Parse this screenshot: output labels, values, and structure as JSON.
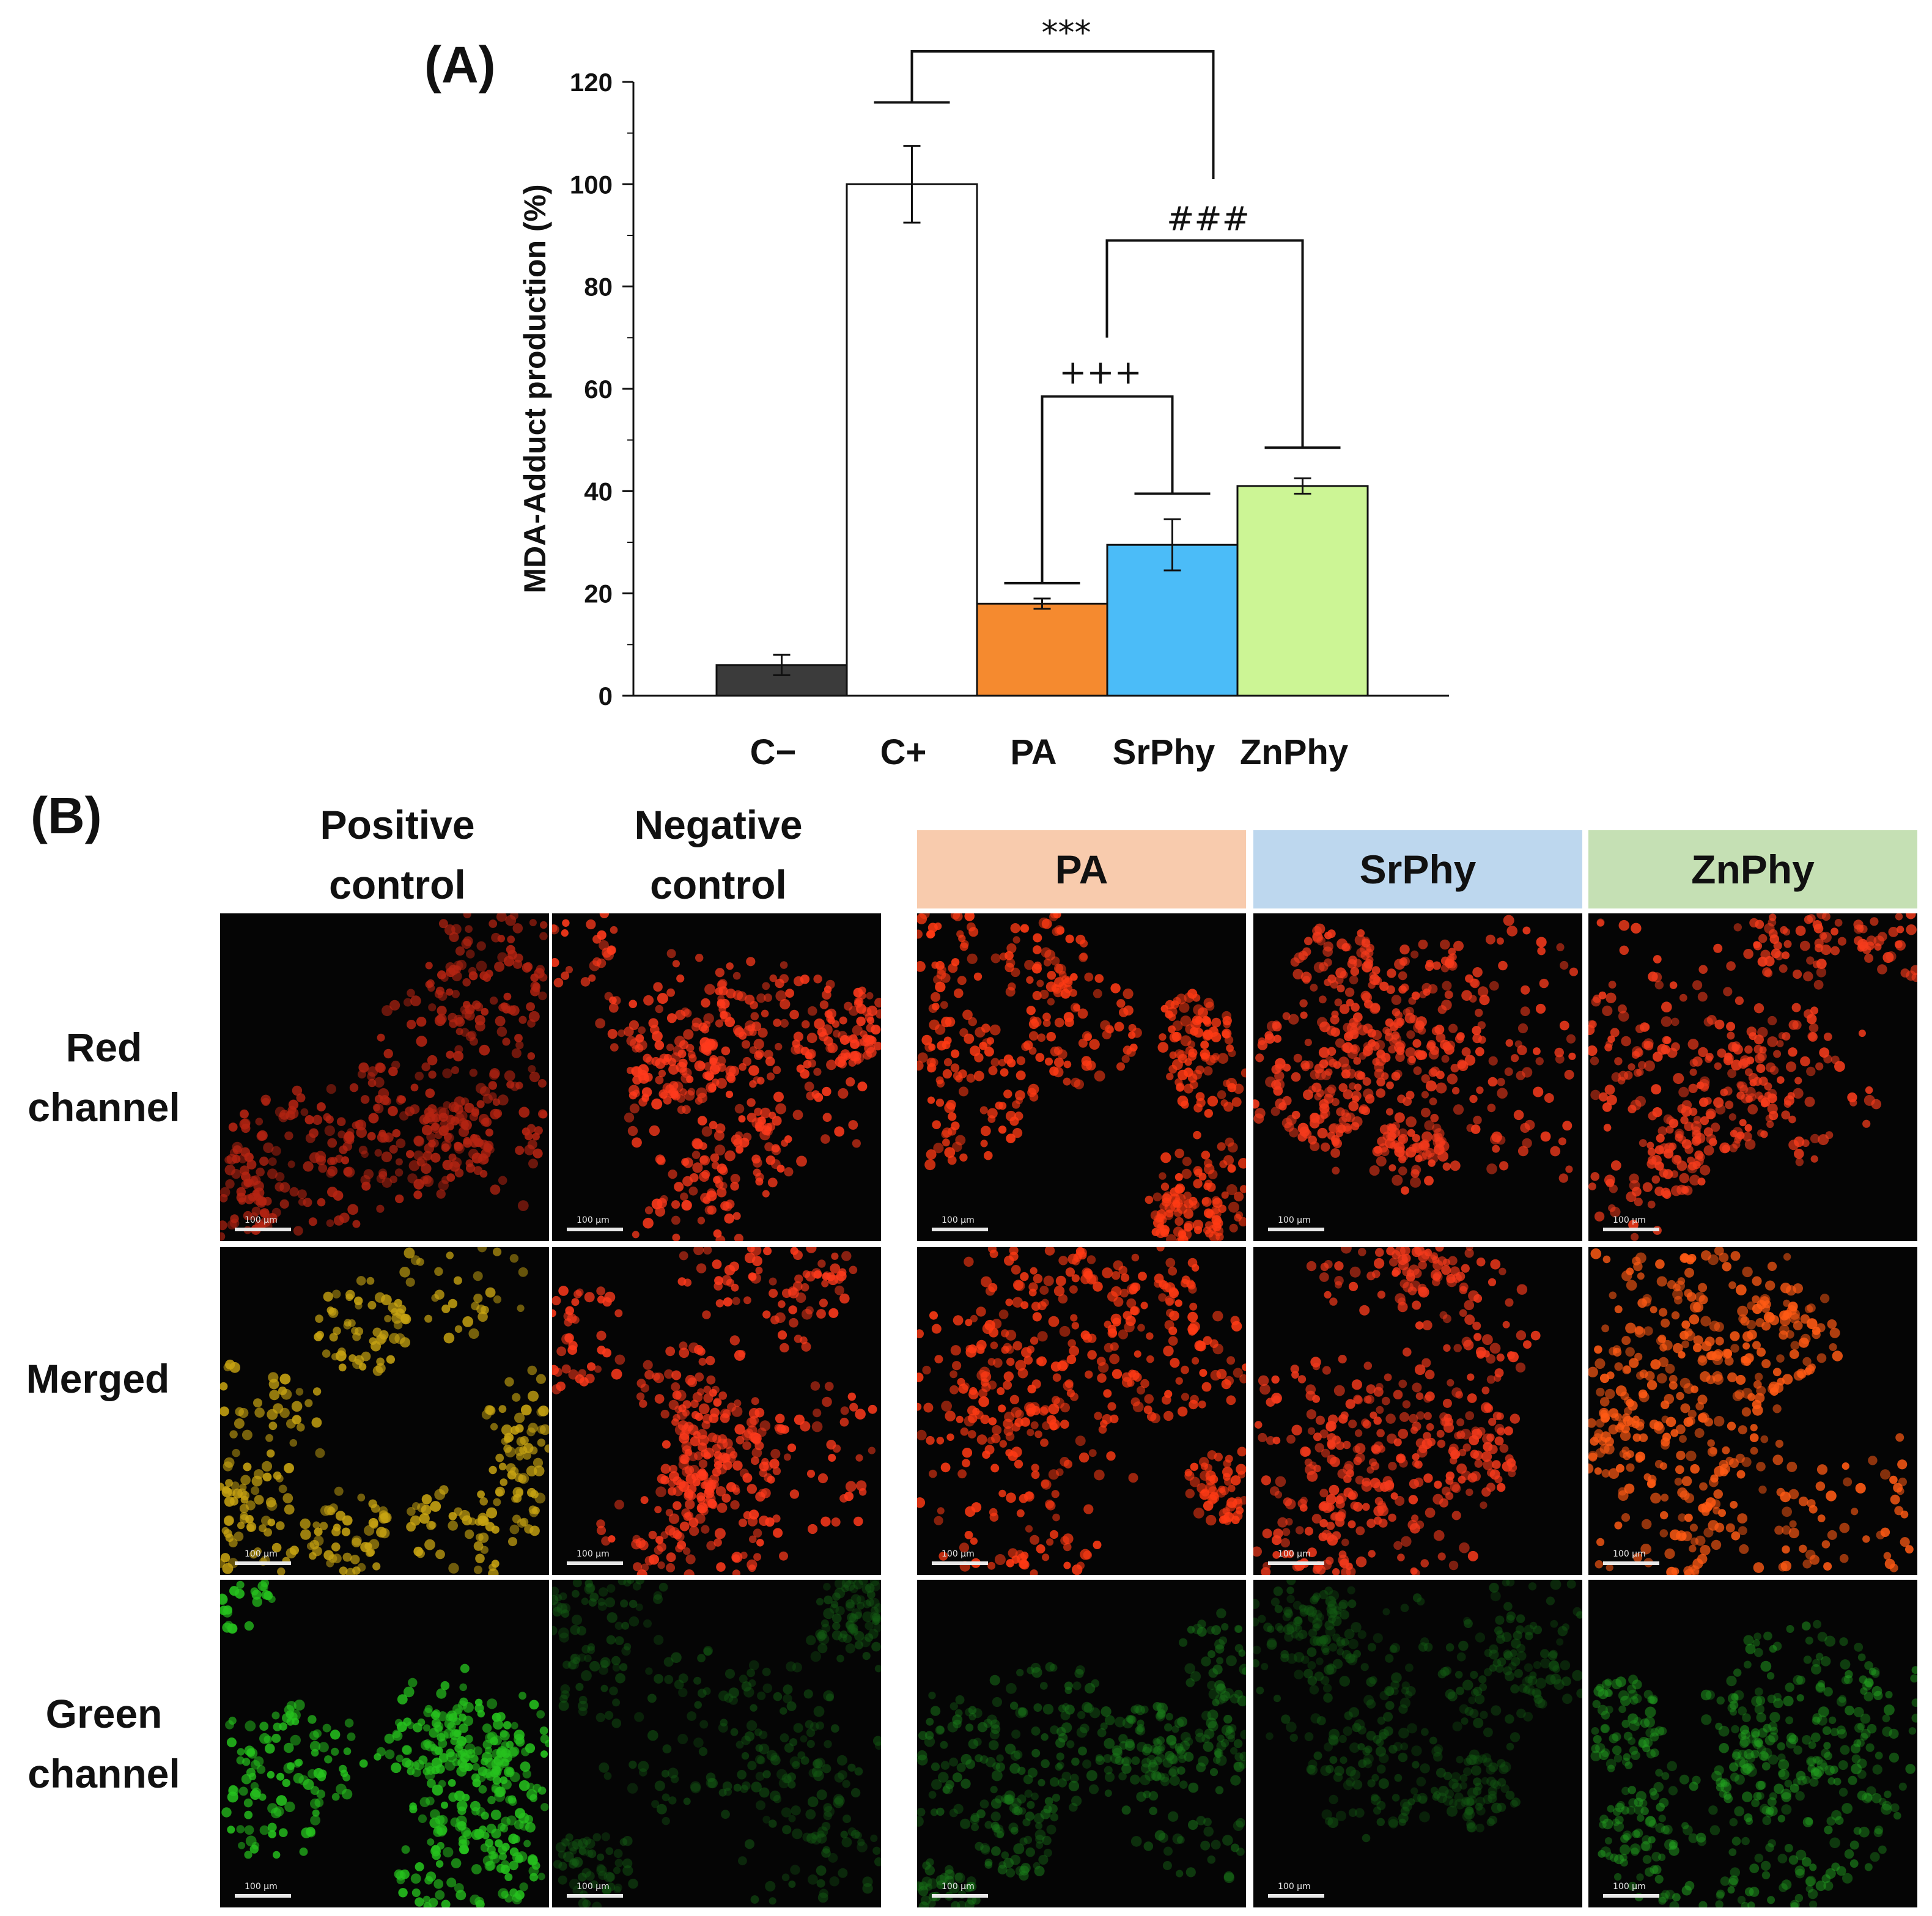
{
  "panel_a": {
    "label": "(A)",
    "chart_data": {
      "type": "bar",
      "title": "",
      "xlabel": "",
      "ylabel": "MDA-Adduct production (%)",
      "ylim": [
        0,
        120
      ],
      "yticks": [
        0,
        20,
        40,
        60,
        80,
        100,
        120
      ],
      "categories": [
        "C−",
        "C+",
        "PA",
        "SrPhy",
        "ZnPhy"
      ],
      "values": [
        6,
        100,
        18,
        29.5,
        41
      ],
      "errors": [
        2,
        7.5,
        1,
        5,
        1.5
      ],
      "colors": [
        "#3b3b3b",
        "#ffffff",
        "#f58a2f",
        "#4bbcf8",
        "#ccf595"
      ],
      "grid": false,
      "annotations": [
        {
          "text": "***",
          "from": "C+",
          "to": "ZnPhy"
        },
        {
          "text": "###",
          "from": "PA",
          "to": "ZnPhy"
        },
        {
          "text": "+++",
          "from": "PA",
          "to": "SrPhy"
        }
      ]
    }
  },
  "panel_b": {
    "label": "(B)",
    "columns": [
      {
        "label": "Positive control",
        "header_color": ""
      },
      {
        "label": "Negative control",
        "header_color": ""
      },
      {
        "label": "PA",
        "header_color": "#f8cbad"
      },
      {
        "label": "SrPhy",
        "header_color": "#bdd7ee"
      },
      {
        "label": "ZnPhy",
        "header_color": "#c5e0b4"
      }
    ],
    "rows": [
      "Red channel",
      "Merged",
      "Green channel"
    ],
    "scale_bar_label": "100 μm",
    "image_tints": [
      [
        "#b52412",
        "#ff3a1c",
        "#ff3a14",
        "#f53a1c",
        "#f63c1c"
      ],
      [
        "#c8a412",
        "#ff3a1c",
        "#ff3a14",
        "#f53a1c",
        "#ff5a14"
      ],
      [
        "#26c21e",
        "#145c14",
        "#1a7a1a",
        "#135a13",
        "#22a020"
      ]
    ]
  }
}
